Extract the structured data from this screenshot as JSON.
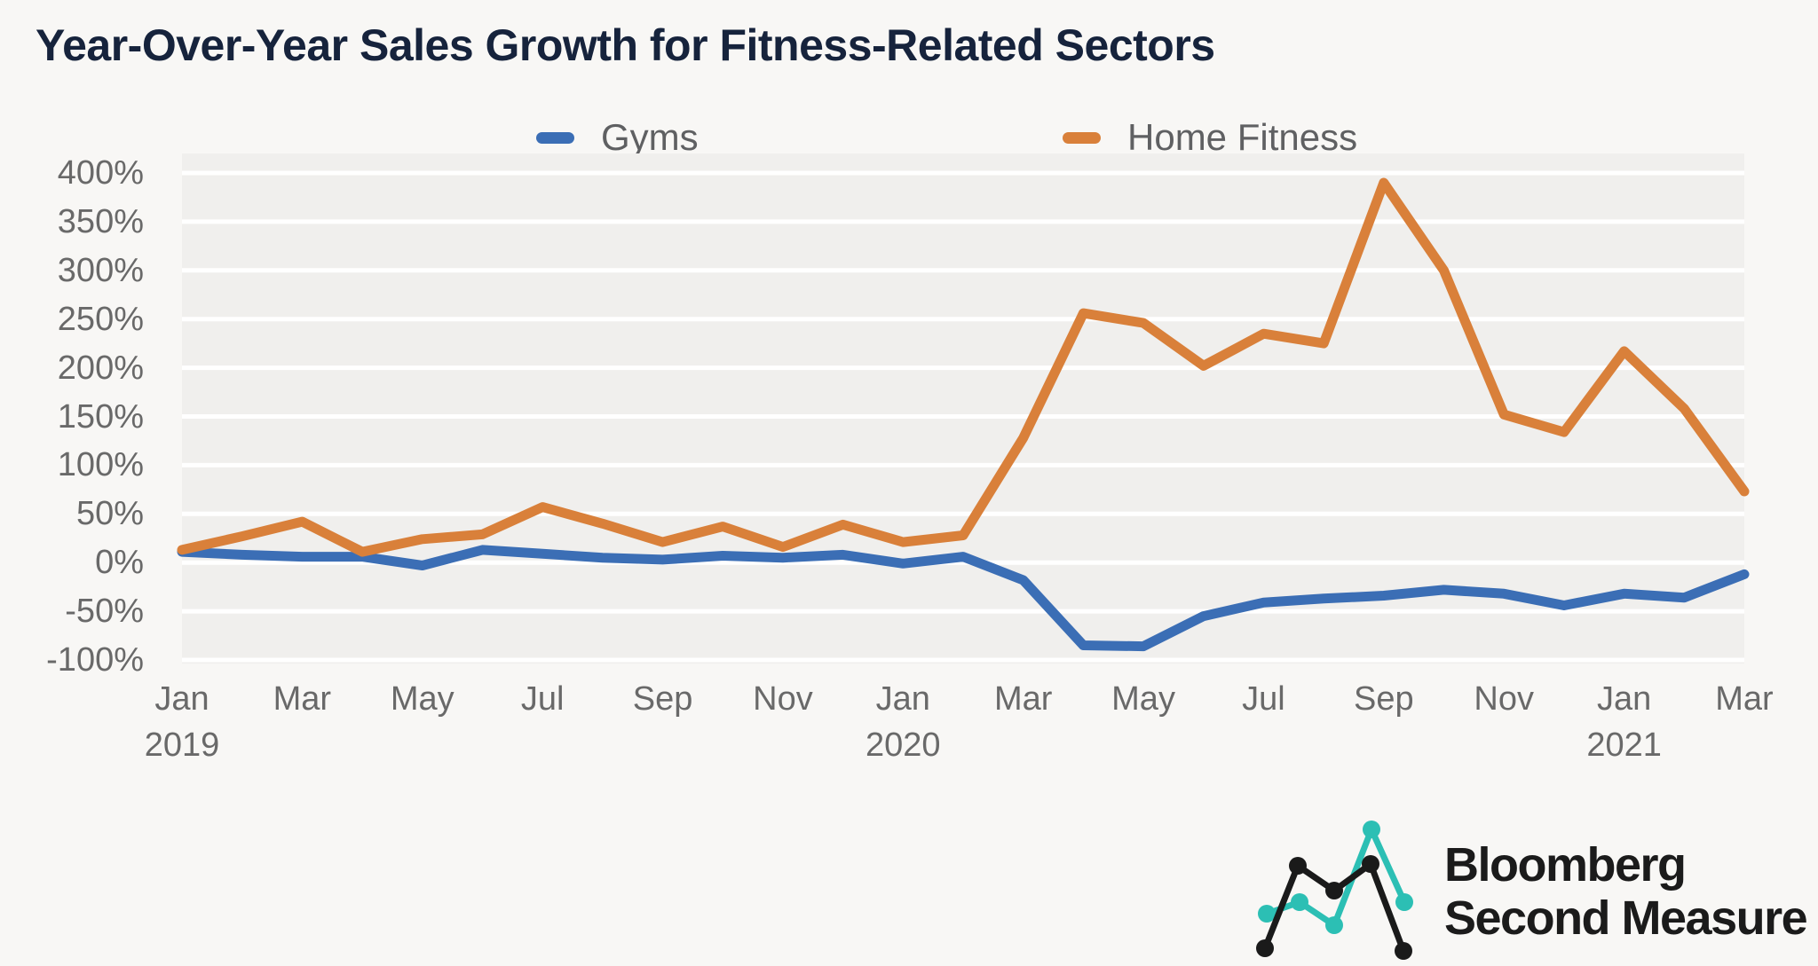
{
  "title": "Year-Over-Year Sales Growth for Fitness-Related Sectors",
  "legend": [
    {
      "label": "Gyms",
      "color": "#3b6eb5"
    },
    {
      "label": "Home Fitness",
      "color": "#d9803a"
    }
  ],
  "logo": {
    "line1": "Bloomberg",
    "line2": "Second Measure",
    "teal": "#2cbfb4",
    "black": "#1a1a1a"
  },
  "chart_data": {
    "type": "line",
    "title": "Year-Over-Year Sales Growth for Fitness-Related Sectors",
    "x": [
      "Jan 2019",
      "Feb 2019",
      "Mar 2019",
      "Apr 2019",
      "May 2019",
      "Jun 2019",
      "Jul 2019",
      "Aug 2019",
      "Sep 2019",
      "Oct 2019",
      "Nov 2019",
      "Dec 2019",
      "Jan 2020",
      "Feb 2020",
      "Mar 2020",
      "Apr 2020",
      "May 2020",
      "Jun 2020",
      "Jul 2020",
      "Aug 2020",
      "Sep 2020",
      "Oct 2020",
      "Nov 2020",
      "Dec 2020",
      "Jan 2021",
      "Feb 2021",
      "Mar 2021"
    ],
    "series": [
      {
        "name": "Gyms",
        "color": "#3b6eb5",
        "values": [
          11,
          8,
          6,
          6,
          -3,
          13,
          9,
          5,
          3,
          7,
          5,
          8,
          -1,
          6,
          -18,
          -85,
          -86,
          -55,
          -41,
          -37,
          -34,
          -28,
          -32,
          -44,
          -32,
          -36,
          -12
        ]
      },
      {
        "name": "Home Fitness",
        "color": "#d9803a",
        "values": [
          13,
          27,
          42,
          11,
          24,
          29,
          57,
          40,
          21,
          37,
          16,
          39,
          21,
          28,
          128,
          256,
          246,
          202,
          235,
          225,
          390,
          300,
          152,
          134,
          217,
          158,
          73
        ]
      }
    ],
    "unit": "%",
    "ylim": [
      -100,
      400
    ],
    "y_ticks": [
      "400%",
      "350%",
      "300%",
      "250%",
      "200%",
      "150%",
      "100%",
      "50%",
      "0%",
      "-50%",
      "-100%"
    ],
    "x_ticks": [
      {
        "label": "Jan",
        "year": "2019"
      },
      {
        "label": "Mar"
      },
      {
        "label": "May"
      },
      {
        "label": "Jul"
      },
      {
        "label": "Sep"
      },
      {
        "label": "Nov"
      },
      {
        "label": "Jan",
        "year": "2020"
      },
      {
        "label": "Mar"
      },
      {
        "label": "May"
      },
      {
        "label": "Jul"
      },
      {
        "label": "Sep"
      },
      {
        "label": "Nov"
      },
      {
        "label": "Jan",
        "year": "2021"
      },
      {
        "label": "Mar"
      }
    ],
    "grid": "horizontal white gridlines every 50% on light gray plot band",
    "legend_position": "top"
  }
}
